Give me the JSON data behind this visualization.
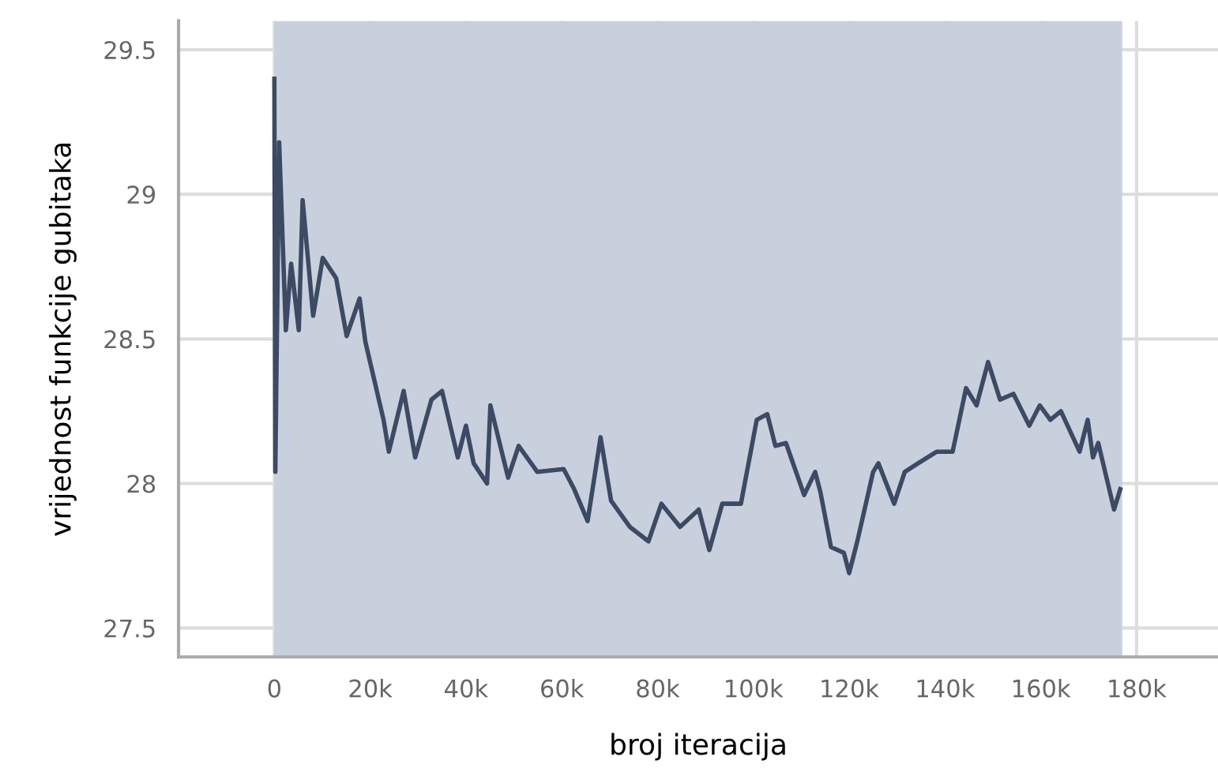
{
  "chart_data": {
    "type": "line",
    "xlabel": "broj iteracija",
    "ylabel": "vrijednost funkcije gubitaka",
    "xlim": [
      -20000,
      197000
    ],
    "ylim": [
      27.4,
      29.6
    ],
    "xticks": [
      {
        "value": 0,
        "label": "0"
      },
      {
        "value": 20000,
        "label": "20k"
      },
      {
        "value": 40000,
        "label": "40k"
      },
      {
        "value": 60000,
        "label": "60k"
      },
      {
        "value": 80000,
        "label": "80k"
      },
      {
        "value": 100000,
        "label": "100k"
      },
      {
        "value": 120000,
        "label": "120k"
      },
      {
        "value": 140000,
        "label": "140k"
      },
      {
        "value": 160000,
        "label": "160k"
      },
      {
        "value": 180000,
        "label": "180k"
      }
    ],
    "yticks": [
      27.5,
      28,
      28.5,
      29,
      29.5
    ],
    "grid": true,
    "bands": [
      {
        "axis": "x",
        "from": 0,
        "to": 177000,
        "color": "#c9d0dd"
      }
    ],
    "series": [
      {
        "color": "#3c4a63",
        "x": [
          0,
          200,
          1000,
          2400,
          3500,
          5100,
          5900,
          8100,
          10100,
          12900,
          15100,
          17800,
          19000,
          22800,
          23900,
          27000,
          29400,
          32800,
          35000,
          38300,
          40000,
          41600,
          44400,
          45100,
          48800,
          51000,
          54900,
          60400,
          62600,
          65400,
          68100,
          70300,
          74200,
          78100,
          80800,
          84700,
          88600,
          90800,
          93500,
          97400,
          100700,
          102900,
          104600,
          106800,
          110600,
          112900,
          114000,
          116200,
          118900,
          120000,
          121700,
          125000,
          126100,
          129400,
          131600,
          134400,
          138300,
          141600,
          144400,
          146600,
          149000,
          151500,
          154300,
          157600,
          159800,
          162000,
          164200,
          168100,
          169800,
          170900,
          172000,
          175300,
          176600
        ],
        "values": [
          29.4,
          28.04,
          29.18,
          28.53,
          28.76,
          28.53,
          28.98,
          28.58,
          28.78,
          28.71,
          28.51,
          28.64,
          28.49,
          28.22,
          28.11,
          28.32,
          28.09,
          28.29,
          28.32,
          28.09,
          28.2,
          28.07,
          28.0,
          28.27,
          28.02,
          28.13,
          28.04,
          28.05,
          27.98,
          27.87,
          28.16,
          27.94,
          27.85,
          27.8,
          27.93,
          27.85,
          27.91,
          27.77,
          27.93,
          27.93,
          28.22,
          28.24,
          28.13,
          28.14,
          27.96,
          28.04,
          27.97,
          27.78,
          27.76,
          27.69,
          27.8,
          28.04,
          28.07,
          27.93,
          28.04,
          28.07,
          28.11,
          28.11,
          28.33,
          28.27,
          28.42,
          28.29,
          28.31,
          28.2,
          28.27,
          28.22,
          28.25,
          28.11,
          28.22,
          28.09,
          28.14,
          27.91,
          27.98
        ]
      }
    ]
  }
}
